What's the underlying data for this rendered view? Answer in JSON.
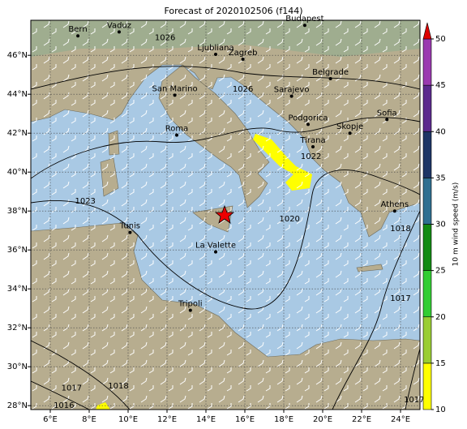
{
  "title": "Forecast of 2020102506 (f144)",
  "map": {
    "lonlim": [
      5,
      25
    ],
    "latlim": [
      27.8,
      47.8
    ],
    "lonticks": [
      {
        "value": 6,
        "label": "6°E"
      },
      {
        "value": 8,
        "label": "8°E"
      },
      {
        "value": 10,
        "label": "10°E"
      },
      {
        "value": 12,
        "label": "12°E"
      },
      {
        "value": 14,
        "label": "14°E"
      },
      {
        "value": 16,
        "label": "16°E"
      },
      {
        "value": 18,
        "label": "18°E"
      },
      {
        "value": 20,
        "label": "20°E"
      },
      {
        "value": 22,
        "label": "22°E"
      },
      {
        "value": 24,
        "label": "24°E"
      }
    ],
    "latticks": [
      {
        "value": 28,
        "label": "28°N"
      },
      {
        "value": 30,
        "label": "30°N"
      },
      {
        "value": 32,
        "label": "32°N"
      },
      {
        "value": 34,
        "label": "34°N"
      },
      {
        "value": 36,
        "label": "36°N"
      },
      {
        "value": 38,
        "label": "38°N"
      },
      {
        "value": 40,
        "label": "40°N"
      },
      {
        "value": 42,
        "label": "42°N"
      },
      {
        "value": 44,
        "label": "44°N"
      },
      {
        "value": 46,
        "label": "46°N"
      }
    ],
    "grid": true,
    "cities": [
      {
        "name": "Bern",
        "lon": 7.42,
        "lat": 47.0
      },
      {
        "name": "Vaduz",
        "lon": 9.54,
        "lat": 47.2
      },
      {
        "name": "Budapest",
        "lon": 19.08,
        "lat": 47.54
      },
      {
        "name": "Ljubliana",
        "lon": 14.5,
        "lat": 46.05
      },
      {
        "name": "Zagreb",
        "lon": 15.9,
        "lat": 45.8
      },
      {
        "name": "Belgrade",
        "lon": 20.4,
        "lat": 44.8
      },
      {
        "name": "San Marino",
        "lon": 12.4,
        "lat": 43.95
      },
      {
        "name": "Sarajevo",
        "lon": 18.4,
        "lat": 43.9
      },
      {
        "name": "Sofia",
        "lon": 23.3,
        "lat": 42.7
      },
      {
        "name": "Podgorica",
        "lon": 19.25,
        "lat": 42.45
      },
      {
        "name": "Skopje",
        "lon": 21.4,
        "lat": 42.0
      },
      {
        "name": "Tirana",
        "lon": 19.5,
        "lat": 41.3
      },
      {
        "name": "Roma",
        "lon": 12.5,
        "lat": 41.9
      },
      {
        "name": "Athens",
        "lon": 23.7,
        "lat": 38.0
      },
      {
        "name": "Tunis",
        "lon": 10.1,
        "lat": 36.9
      },
      {
        "name": "La Valette",
        "lon": 14.5,
        "lat": 35.9
      },
      {
        "name": "Tripoli",
        "lon": 13.2,
        "lat": 32.9
      }
    ],
    "isobar_labels": [
      {
        "label": "1026",
        "lon": 15.9,
        "lat": 44.25
      },
      {
        "label": "1026",
        "lon": 11.9,
        "lat": 46.9
      },
      {
        "label": "1023",
        "lon": 7.8,
        "lat": 38.5
      },
      {
        "label": "1022",
        "lon": 19.4,
        "lat": 40.8
      },
      {
        "label": "1020",
        "lon": 18.3,
        "lat": 37.6
      },
      {
        "label": "1018",
        "lon": 24.0,
        "lat": 37.1
      },
      {
        "label": "1017",
        "lon": 24.0,
        "lat": 33.5
      },
      {
        "label": "1018",
        "lon": 9.5,
        "lat": 29.0
      },
      {
        "label": "1017",
        "lon": 7.1,
        "lat": 28.9
      },
      {
        "label": "1016",
        "lon": 6.7,
        "lat": 28.0
      },
      {
        "label": "1017",
        "lon": 24.7,
        "lat": 28.3
      }
    ]
  },
  "colorbar": {
    "label": "10 m wind speed (m/s)",
    "lim": [
      10,
      50
    ],
    "ticks": [
      10,
      15,
      20,
      25,
      30,
      35,
      40,
      45,
      50
    ],
    "colors": [
      "#ffff00",
      "#9acd32",
      "#32cd32",
      "#138b13",
      "#2f6f91",
      "#1d3566",
      "#5b2a8e",
      "#9a39b0"
    ],
    "extend_color": "#dd0000"
  }
}
